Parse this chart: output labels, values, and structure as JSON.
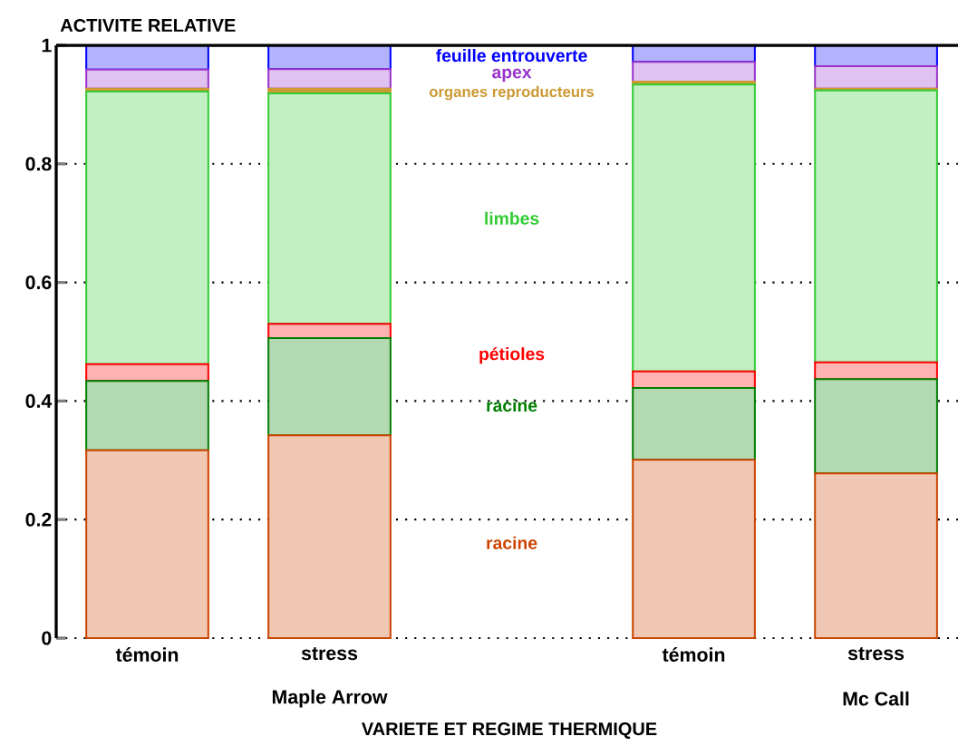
{
  "chart_data": {
    "type": "bar",
    "stacked": true,
    "ylabel": "ACTIVITE RELATIVE",
    "xlabel": "VARIETE ET REGIME THERMIQUE",
    "categories": [
      "témoin",
      "stress",
      null,
      "témoin",
      "stress"
    ],
    "series": [
      {
        "name": "racine",
        "color": "#cc4400",
        "values": [
          0.317,
          0.342,
          null,
          0.301,
          0.278
        ]
      },
      {
        "name": "racine",
        "color": "#007f00",
        "values": [
          0.117,
          0.164,
          null,
          0.121,
          0.159
        ]
      },
      {
        "name": "pétioles",
        "color": "#ff0000",
        "values": [
          0.028,
          0.024,
          null,
          0.028,
          0.028
        ]
      },
      {
        "name": "limbes",
        "color": "#33cc33",
        "values": [
          0.46,
          0.389,
          null,
          0.484,
          0.459
        ]
      },
      {
        "name": "organes reproducteurs",
        "color": "#cc9933",
        "values": [
          0.005,
          0.008,
          null,
          0.005,
          0.003
        ]
      },
      {
        "name": "apex",
        "color": "#9933cc",
        "values": [
          0.032,
          0.033,
          null,
          0.033,
          0.038
        ]
      },
      {
        "name": "feuille entrouverte",
        "color": "#0000ff",
        "values": [
          0.041,
          0.04,
          null,
          0.028,
          0.035
        ]
      }
    ],
    "ylim": [
      0,
      1
    ],
    "yticks": [
      0,
      0.2,
      0.4,
      0.6,
      0.8,
      1
    ],
    "grid": "y",
    "annotations": [
      "Maple Arrow",
      "Mc Call"
    ]
  }
}
